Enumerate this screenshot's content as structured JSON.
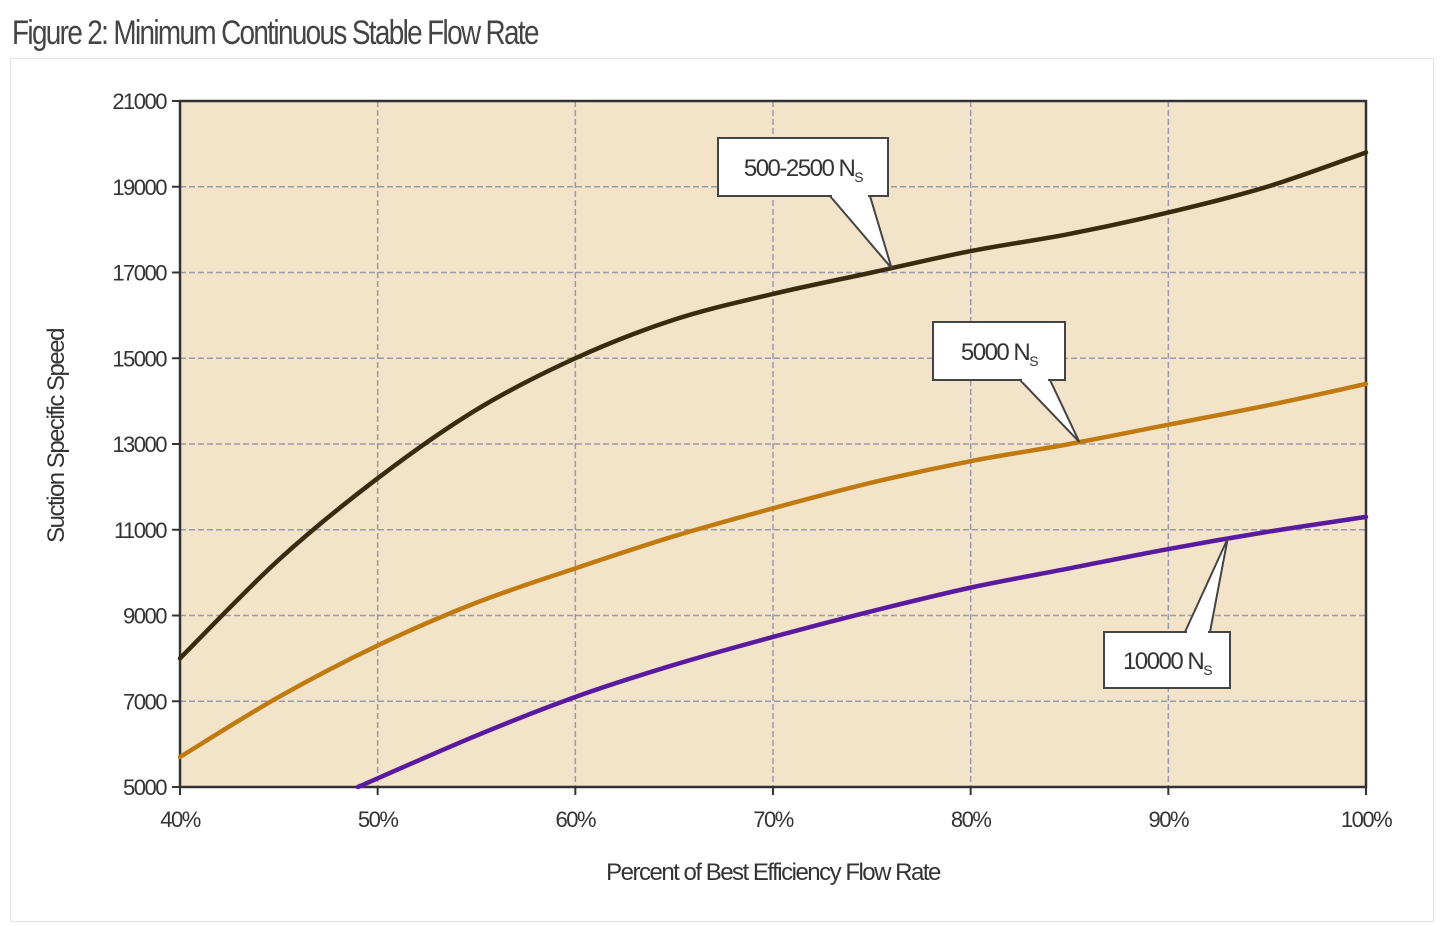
{
  "figure_title": "Figure 2: Minimum Continuous Stable Flow Rate",
  "chart_data": {
    "type": "line",
    "title": "Figure 2: Minimum Continuous Stable Flow Rate",
    "xlabel": "Percent of Best Efficiency Flow Rate",
    "ylabel": "Suction Specific Speed",
    "xlim": [
      40,
      100
    ],
    "ylim": [
      5000,
      21000
    ],
    "x_ticks": [
      "40%",
      "50%",
      "60%",
      "70%",
      "80%",
      "90%",
      "100%"
    ],
    "y_ticks": [
      "5000",
      "7000",
      "9000",
      "11000",
      "13000",
      "15000",
      "17000",
      "19000",
      "21000"
    ],
    "grid": true,
    "background_color": "#f3e3c8",
    "series": [
      {
        "name": "500-2500 N",
        "name_sub": "S",
        "color": "#3a2a0e",
        "x": [
          40,
          45,
          50,
          55,
          60,
          65,
          70,
          75,
          80,
          85,
          90,
          95,
          100
        ],
        "y": [
          8000,
          10300,
          12200,
          13800,
          15000,
          15900,
          16500,
          17000,
          17500,
          17900,
          18400,
          19000,
          19800
        ]
      },
      {
        "name": "5000 N",
        "name_sub": "S",
        "color": "#c07a10",
        "x": [
          40,
          45,
          50,
          55,
          60,
          65,
          70,
          75,
          80,
          85,
          90,
          95,
          100
        ],
        "y": [
          5700,
          7100,
          8300,
          9300,
          10100,
          10850,
          11500,
          12100,
          12600,
          13000,
          13450,
          13900,
          14400
        ]
      },
      {
        "name": "10000 N",
        "name_sub": "S",
        "color": "#5a1aa0",
        "x": [
          49,
          55,
          60,
          65,
          70,
          75,
          80,
          85,
          90,
          95,
          100
        ],
        "y": [
          5000,
          6200,
          7100,
          7850,
          8500,
          9100,
          9650,
          10100,
          10550,
          10950,
          11300
        ]
      }
    ]
  }
}
